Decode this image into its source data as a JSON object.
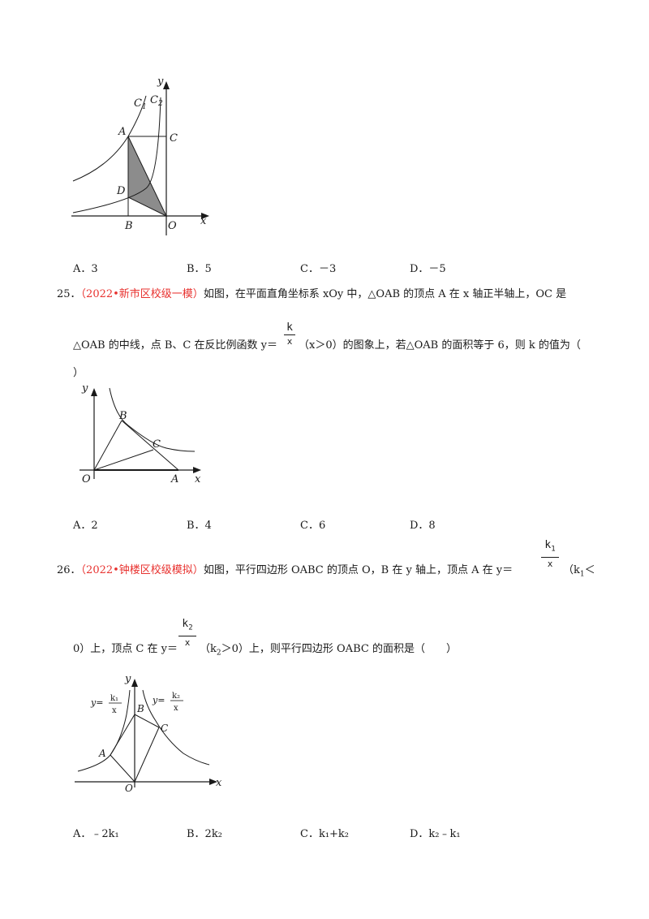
{
  "fig24": {
    "y": "y",
    "x": "x",
    "c1": "C",
    "c1_sub": "1",
    "c2": "C",
    "c2_sub": "2",
    "a": "A",
    "c": "C",
    "d": "D",
    "b": "B",
    "o": "O"
  },
  "q24_options": [
    "A．3",
    "B．5",
    "C．－3",
    "D．－5"
  ],
  "q25": {
    "number": "25．",
    "source": "（2022•新市区校级一模）",
    "text1": "如图，在平面直角坐标系 xOy 中，△OAB 的顶点 A 在 x 轴正半轴上，OC 是",
    "text2a": "△OAB 的中线，点 B、C 在反比例函数 y＝",
    "frac_num": "k",
    "frac_den": "x",
    "text2b": "（x＞0）的图象上，若△OAB 的面积等于 6，则 k 的值为（",
    "text3": "）",
    "options": [
      "A．2",
      "B．4",
      "C．6",
      "D．8"
    ]
  },
  "fig25": {
    "y": "y",
    "x": "x",
    "b": "B",
    "c": "C",
    "o": "O",
    "a": "A"
  },
  "q26": {
    "number": "26．",
    "source": "（2022•钟楼区校级模拟）",
    "text1a": "如图，平行四边形 OABC 的顶点 O，B 在 y 轴上，顶点 A 在 y＝",
    "frac1_num": "k",
    "frac1_num_sub": "1",
    "frac1_den": "x",
    "text1b": "（k",
    "text1b_sub": "1",
    "text1c": "＜",
    "text2a": "0）上，顶点 C 在 y＝",
    "frac2_num": "k",
    "frac2_num_sub": "2",
    "frac2_den": "x",
    "text2b": "（k",
    "text2b_sub": "2",
    "text2c": "＞0）上，则平行四边形 OABC 的面积是（　　）",
    "options": [
      "A．﹣2k₁",
      "B．2k₂",
      "C．k₁+k₂",
      "D．k₂﹣k₁"
    ]
  },
  "fig26": {
    "y": "y",
    "x": "x",
    "b": "B",
    "a": "A",
    "c": "C",
    "o": "O",
    "label_left": "y=",
    "label_right": "y=",
    "k1": "k₁",
    "k2": "k₂",
    "den": "x"
  }
}
